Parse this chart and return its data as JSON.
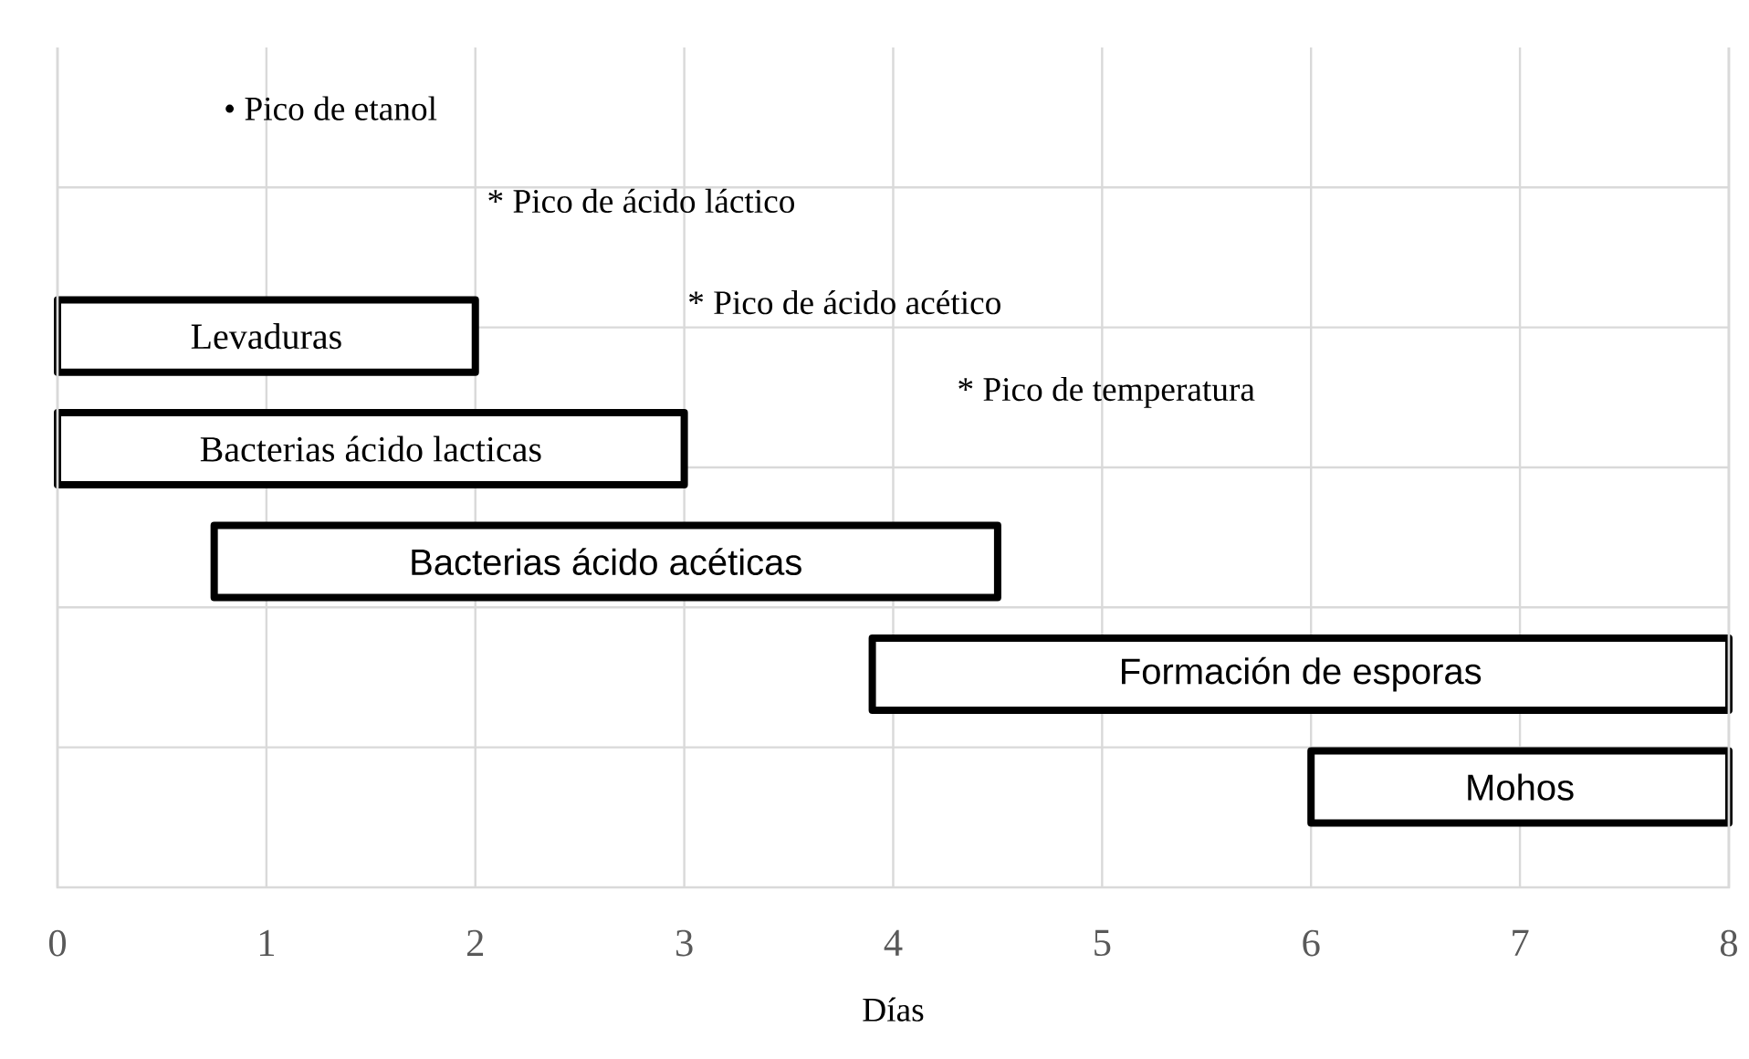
{
  "chart_data": {
    "type": "bar",
    "orientation": "horizontal",
    "xlabel": "Días",
    "categories": [
      "Levaduras",
      "Bacterias ácido lacticas",
      "Bacterias ácido acéticas",
      "Formación de esporas",
      "Mohos"
    ],
    "base": [
      0,
      0,
      0.75,
      3.9,
      6
    ],
    "values": [
      2,
      3,
      3.75,
      4.1,
      2
    ],
    "color": "#ffffff",
    "xlim": [
      0,
      8
    ],
    "xticks": [
      0,
      1,
      2,
      3,
      4,
      5,
      6,
      7,
      8
    ],
    "grid": true,
    "tick_labels": "x",
    "annotations": [
      "• Pico de etanol",
      "* Pico de ácido láctico",
      "* Pico de ácido acético",
      "* Pico de temperatura"
    ]
  }
}
